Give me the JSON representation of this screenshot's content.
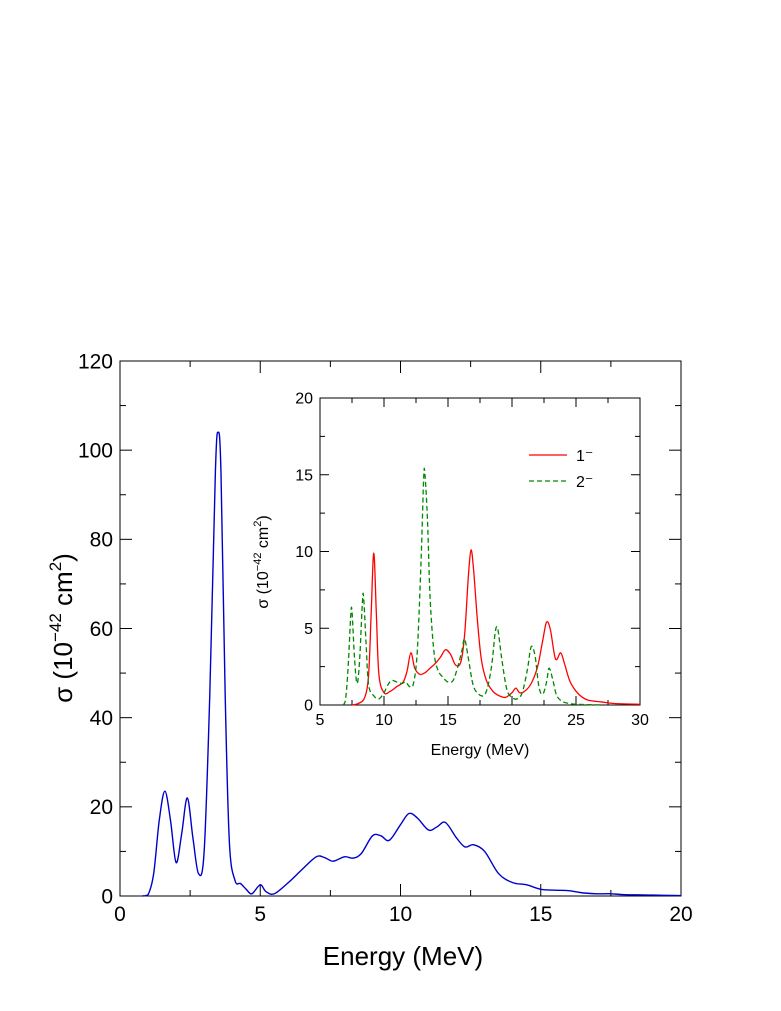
{
  "chart_data": [
    {
      "type": "line",
      "xlabel": "Energy (MeV)",
      "ylabel": {
        "prefix": "σ (10",
        "exp1": "−42",
        "mid": " cm",
        "exp2": "2",
        "suffix": ")"
      },
      "xlim": [
        0,
        20
      ],
      "ylim": [
        0,
        120
      ],
      "xticks": [
        0,
        5,
        10,
        15,
        20
      ],
      "yticks": [
        0,
        20,
        40,
        60,
        80,
        100,
        120
      ],
      "grid": false,
      "series": [
        {
          "color": "#0000cc",
          "style": "solid",
          "points": [
            [
              0.8,
              0
            ],
            [
              1.0,
              0.3
            ],
            [
              1.2,
              5
            ],
            [
              1.4,
              17
            ],
            [
              1.6,
              23.5
            ],
            [
              1.8,
              17
            ],
            [
              2.0,
              7.5
            ],
            [
              2.2,
              14
            ],
            [
              2.4,
              22
            ],
            [
              2.6,
              13
            ],
            [
              2.8,
              5
            ],
            [
              3.0,
              10
            ],
            [
              3.2,
              45
            ],
            [
              3.4,
              95
            ],
            [
              3.5,
              104
            ],
            [
              3.6,
              95
            ],
            [
              3.75,
              45
            ],
            [
              3.9,
              12
            ],
            [
              4.1,
              3.5
            ],
            [
              4.3,
              2.8
            ],
            [
              4.5,
              1.5
            ],
            [
              4.7,
              0.5
            ],
            [
              5.0,
              2.5
            ],
            [
              5.2,
              1
            ],
            [
              5.5,
              0.5
            ],
            [
              6.0,
              3
            ],
            [
              6.5,
              6
            ],
            [
              7.0,
              8.8
            ],
            [
              7.3,
              8.6
            ],
            [
              7.6,
              7.8
            ],
            [
              8.0,
              8.8
            ],
            [
              8.3,
              8.5
            ],
            [
              8.6,
              9.5
            ],
            [
              9.0,
              13.5
            ],
            [
              9.3,
              13.5
            ],
            [
              9.6,
              12.5
            ],
            [
              10.0,
              16
            ],
            [
              10.3,
              18.5
            ],
            [
              10.6,
              17.5
            ],
            [
              11.0,
              14.8
            ],
            [
              11.3,
              15.5
            ],
            [
              11.6,
              16.5
            ],
            [
              12.0,
              13
            ],
            [
              12.3,
              11
            ],
            [
              12.6,
              11.5
            ],
            [
              13.0,
              10
            ],
            [
              13.5,
              5
            ],
            [
              14.0,
              3
            ],
            [
              14.5,
              2.5
            ],
            [
              15.0,
              1.5
            ],
            [
              15.5,
              1.3
            ],
            [
              16.0,
              1.2
            ],
            [
              16.5,
              0.7
            ],
            [
              17.0,
              0.5
            ],
            [
              17.5,
              0.5
            ],
            [
              18.0,
              0.3
            ],
            [
              19.0,
              0.2
            ],
            [
              20.0,
              0.1
            ]
          ]
        }
      ]
    },
    {
      "type": "line",
      "xlabel": "Energy (MeV)",
      "ylabel": {
        "prefix": "σ (10",
        "exp1": "−42",
        "mid": " cm",
        "exp2": "2",
        "suffix": ")"
      },
      "xlim": [
        5,
        30
      ],
      "ylim": [
        0,
        20
      ],
      "xticks": [
        5,
        10,
        15,
        20,
        25,
        30
      ],
      "yticks": [
        0,
        5,
        10,
        15,
        20
      ],
      "grid": false,
      "legend_position": "top-right",
      "series": [
        {
          "name": "1⁻",
          "color": "#ff0000",
          "style": "solid",
          "points": [
            [
              7.5,
              0
            ],
            [
              8.0,
              0.1
            ],
            [
              8.5,
              0.5
            ],
            [
              8.8,
              2
            ],
            [
              9.0,
              6
            ],
            [
              9.2,
              9.9
            ],
            [
              9.4,
              6
            ],
            [
              9.6,
              2
            ],
            [
              10.0,
              0.8
            ],
            [
              10.5,
              0.9
            ],
            [
              11.0,
              1.2
            ],
            [
              11.5,
              1.5
            ],
            [
              11.8,
              2.2
            ],
            [
              12.1,
              3.4
            ],
            [
              12.4,
              2.4
            ],
            [
              12.8,
              2.0
            ],
            [
              13.2,
              2.1
            ],
            [
              13.6,
              2.4
            ],
            [
              14.0,
              2.7
            ],
            [
              14.4,
              3.1
            ],
            [
              14.8,
              3.6
            ],
            [
              15.2,
              3.3
            ],
            [
              15.6,
              2.6
            ],
            [
              16.0,
              2.8
            ],
            [
              16.3,
              4.6
            ],
            [
              16.6,
              8.5
            ],
            [
              16.8,
              10.1
            ],
            [
              17.0,
              8.8
            ],
            [
              17.3,
              5.5
            ],
            [
              17.6,
              3.0
            ],
            [
              18.0,
              1.6
            ],
            [
              18.5,
              0.9
            ],
            [
              19.0,
              0.6
            ],
            [
              19.5,
              0.5
            ],
            [
              20.0,
              0.8
            ],
            [
              20.3,
              1.1
            ],
            [
              20.6,
              0.8
            ],
            [
              21.0,
              0.9
            ],
            [
              21.5,
              1.4
            ],
            [
              22.0,
              2.5
            ],
            [
              22.4,
              4.2
            ],
            [
              22.7,
              5.4
            ],
            [
              23.0,
              4.9
            ],
            [
              23.4,
              3.0
            ],
            [
              23.8,
              3.4
            ],
            [
              24.1,
              2.7
            ],
            [
              24.5,
              1.6
            ],
            [
              25.0,
              0.9
            ],
            [
              25.5,
              0.5
            ],
            [
              26.0,
              0.3
            ],
            [
              27.0,
              0.2
            ],
            [
              28.0,
              0.1
            ],
            [
              30.0,
              0.05
            ]
          ]
        },
        {
          "name": "2⁻",
          "color": "#008800",
          "style": "dashed",
          "points": [
            [
              6.8,
              0
            ],
            [
              7.0,
              0.4
            ],
            [
              7.2,
              2.5
            ],
            [
              7.4,
              5.8
            ],
            [
              7.5,
              6.1
            ],
            [
              7.7,
              3
            ],
            [
              7.9,
              1.4
            ],
            [
              8.1,
              3
            ],
            [
              8.3,
              6.5
            ],
            [
              8.4,
              7.1
            ],
            [
              8.6,
              4
            ],
            [
              8.8,
              1.3
            ],
            [
              9.2,
              0.6
            ],
            [
              9.6,
              0.4
            ],
            [
              10.0,
              0.8
            ],
            [
              10.3,
              1.3
            ],
            [
              10.6,
              1.6
            ],
            [
              11.0,
              1.5
            ],
            [
              11.4,
              1.4
            ],
            [
              11.7,
              1.5
            ],
            [
              12.0,
              1.2
            ],
            [
              12.3,
              1.4
            ],
            [
              12.6,
              3.5
            ],
            [
              12.9,
              9.5
            ],
            [
              13.1,
              14.8
            ],
            [
              13.2,
              15.0
            ],
            [
              13.4,
              12
            ],
            [
              13.6,
              7
            ],
            [
              13.9,
              3.5
            ],
            [
              14.2,
              2.3
            ],
            [
              14.6,
              1.8
            ],
            [
              15.0,
              1.5
            ],
            [
              15.4,
              1.6
            ],
            [
              15.8,
              2.6
            ],
            [
              16.1,
              3.6
            ],
            [
              16.3,
              4.3
            ],
            [
              16.6,
              3.0
            ],
            [
              17.0,
              1.2
            ],
            [
              17.6,
              0.6
            ],
            [
              18.0,
              0.9
            ],
            [
              18.4,
              2.5
            ],
            [
              18.7,
              4.8
            ],
            [
              18.9,
              4.9
            ],
            [
              19.2,
              3.0
            ],
            [
              19.6,
              1.0
            ],
            [
              20.0,
              0.5
            ],
            [
              20.4,
              0.4
            ],
            [
              20.8,
              0.8
            ],
            [
              21.2,
              2.3
            ],
            [
              21.5,
              3.8
            ],
            [
              21.8,
              3.2
            ],
            [
              22.1,
              1.2
            ],
            [
              22.4,
              0.7
            ],
            [
              22.7,
              1.5
            ],
            [
              22.9,
              2.4
            ],
            [
              23.2,
              1.6
            ],
            [
              23.5,
              0.6
            ],
            [
              24.0,
              0.2
            ],
            [
              24.5,
              0.1
            ],
            [
              25.0,
              0.05
            ],
            [
              27.0,
              0
            ]
          ]
        }
      ]
    }
  ]
}
